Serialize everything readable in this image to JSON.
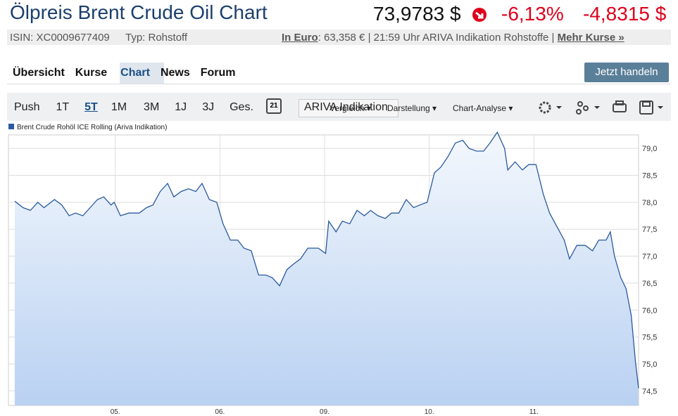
{
  "header": {
    "title": "Ölpreis Brent Crude Oil Chart",
    "price": "73,9783 $",
    "change_percent": "-6,13%",
    "change_abs": "-4,8315 $"
  },
  "subheader": {
    "isin": "ISIN: XC0009677409",
    "type": "Typ: Rohstoff",
    "euro_link": "In Euro",
    "euro_info": ": 63,358 € | 21:59 Uhr ARIVA Indikation Rohstoffe |",
    "more_link": "Mehr Kurse »"
  },
  "tabs": [
    "Übersicht",
    "Kurse",
    "Chart",
    "News",
    "Forum"
  ],
  "trade_button": "Jetzt handeln",
  "toolbar": {
    "periods": [
      "Push",
      "1T",
      "5T",
      "1M",
      "3M",
      "1J",
      "3J",
      "Ges."
    ],
    "calendar_day": "21",
    "source": "ARIVA Indikation",
    "compare": "Vergleich",
    "display": "Darstellung",
    "analysis": "Chart-Analyse"
  },
  "chart_data": {
    "type": "line",
    "grid": true,
    "xlim": [
      -0.02,
      6.0
    ],
    "xticks": [
      {
        "value": 1,
        "label": "05."
      },
      {
        "value": 2,
        "label": "06."
      },
      {
        "value": 3,
        "label": "09."
      },
      {
        "value": 4,
        "label": "10."
      },
      {
        "value": 5,
        "label": "11."
      }
    ],
    "ylim": [
      74.23,
      79.25
    ],
    "yticks": [
      {
        "value": 74.5,
        "label": "74,5"
      },
      {
        "value": 75.0,
        "label": "75,0"
      },
      {
        "value": 75.5,
        "label": "75,5"
      },
      {
        "value": 76.0,
        "label": "76,0"
      },
      {
        "value": 76.5,
        "label": "76,5"
      },
      {
        "value": 77.0,
        "label": "77,0"
      },
      {
        "value": 77.5,
        "label": "77,5"
      },
      {
        "value": 78.0,
        "label": "78,0"
      },
      {
        "value": 78.5,
        "label": "78,5"
      },
      {
        "value": 79.0,
        "label": "79,0"
      }
    ],
    "series": [
      {
        "name": "Brent Crude Rohöl ICE Rolling (Ariva Indikation)",
        "color": "#2a5a9e",
        "x": [
          0.04,
          0.12,
          0.19,
          0.26,
          0.32,
          0.42,
          0.49,
          0.56,
          0.62,
          0.69,
          0.76,
          0.83,
          0.89,
          0.96,
          0.99,
          1.05,
          1.13,
          1.23,
          1.3,
          1.36,
          1.43,
          1.5,
          1.56,
          1.63,
          1.7,
          1.77,
          1.83,
          1.9,
          1.97,
          2.03,
          2.1,
          2.17,
          2.23,
          2.3,
          2.37,
          2.44,
          2.5,
          2.57,
          2.64,
          2.7,
          2.77,
          2.84,
          2.94,
          3.01,
          3.04,
          3.11,
          3.17,
          3.24,
          3.31,
          3.38,
          3.44,
          3.51,
          3.58,
          3.64,
          3.71,
          3.78,
          3.85,
          3.91,
          3.98,
          4.05,
          4.11,
          4.18,
          4.25,
          4.32,
          4.38,
          4.45,
          4.52,
          4.58,
          4.65,
          4.72,
          4.75,
          4.82,
          4.89,
          4.95,
          5.02,
          5.09,
          5.15,
          5.22,
          5.29,
          5.34,
          5.41,
          5.49,
          5.56,
          5.62,
          5.69,
          5.73,
          5.77,
          5.83,
          5.88,
          5.93,
          5.97,
          6.0
        ],
        "values": [
          78.02,
          77.9,
          77.85,
          78.0,
          77.9,
          78.05,
          77.95,
          77.75,
          77.8,
          77.75,
          77.9,
          78.05,
          78.1,
          77.95,
          78.0,
          77.75,
          77.8,
          77.8,
          77.9,
          77.95,
          78.2,
          78.35,
          78.1,
          78.2,
          78.25,
          78.2,
          78.35,
          78.05,
          78.0,
          77.6,
          77.3,
          77.3,
          77.15,
          77.1,
          76.65,
          76.65,
          76.6,
          76.45,
          76.75,
          76.85,
          76.95,
          77.15,
          77.15,
          77.05,
          77.65,
          77.45,
          77.65,
          77.6,
          77.85,
          77.75,
          77.85,
          77.75,
          77.7,
          77.8,
          77.8,
          78.05,
          77.9,
          77.95,
          78.0,
          78.55,
          78.65,
          78.85,
          79.1,
          79.15,
          79.0,
          78.95,
          78.95,
          79.1,
          79.3,
          79.0,
          78.6,
          78.75,
          78.6,
          78.7,
          78.7,
          78.15,
          77.8,
          77.55,
          77.3,
          76.95,
          77.2,
          77.2,
          77.1,
          77.3,
          77.3,
          77.45,
          77.0,
          76.6,
          76.4,
          75.9,
          75.05,
          74.55
        ]
      }
    ]
  }
}
